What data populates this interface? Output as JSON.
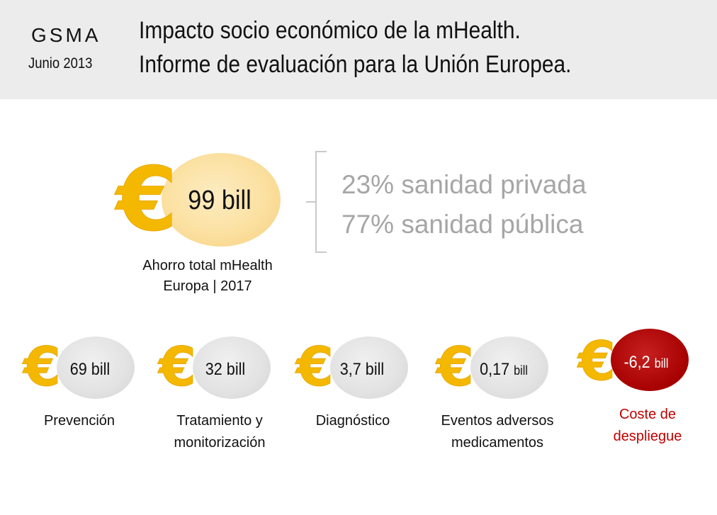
{
  "header": {
    "org": "GSMA",
    "date": "Junio 2013",
    "title_line1": "Impacto socio económico de la mHealth.",
    "title_line2": "Informe de evaluación para la Unión Europea."
  },
  "currency_symbol": "€",
  "total": {
    "value": "99 bill",
    "caption_line1": "Ahorro total mHealth",
    "caption_line2": "Europa | 2017"
  },
  "split": {
    "line1": "23% sanidad privada",
    "line2": "77% sanidad pública"
  },
  "categories": [
    {
      "value": "69 bill",
      "label_line1": "Prevención",
      "label_line2": ""
    },
    {
      "value": "32 bill",
      "label_line1": "Tratamiento y",
      "label_line2": "monitorización"
    },
    {
      "value": "3,7 bill",
      "label_line1": "Diagnóstico",
      "label_line2": ""
    },
    {
      "value_number": "0,17",
      "value_unit": "bill",
      "label_line1": "Eventos adversos",
      "label_line2": "medicamentos"
    },
    {
      "value_number": "-6,2",
      "value_unit": "bill",
      "label_line1": "Coste de",
      "label_line2": "despliegue"
    }
  ],
  "colors": {
    "euro": "#f5b800",
    "cost_ellipse": "#a60000",
    "cost_label": "#c00000",
    "split_text": "#a6a6a6"
  }
}
